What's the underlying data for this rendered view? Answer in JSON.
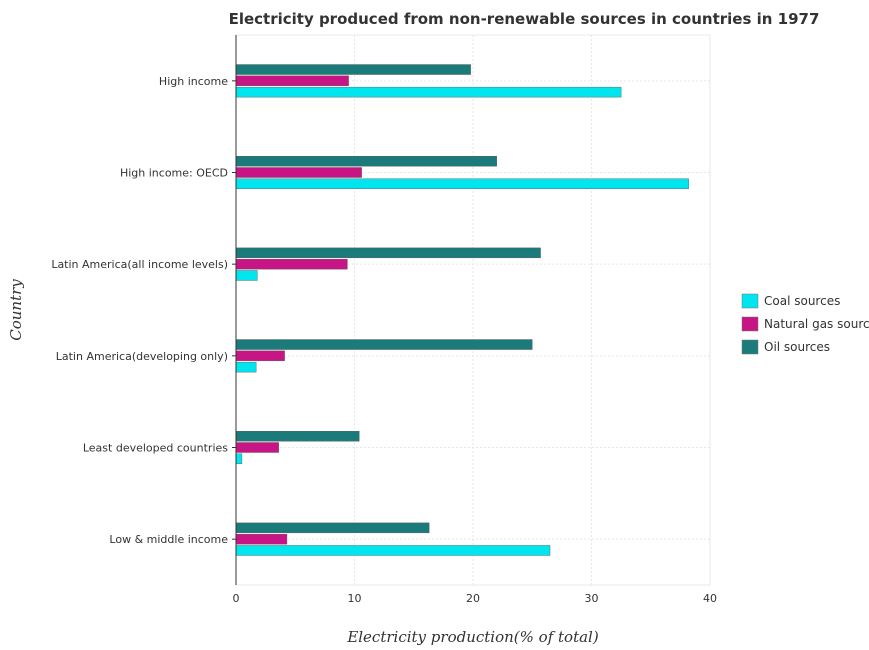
{
  "chart_data": {
    "type": "bar",
    "orientation": "horizontal",
    "title": "Electricity produced from non-renewable sources in countries in 1977",
    "xlabel": "Electricity production(% of total)",
    "ylabel": "Country",
    "xlim": [
      0,
      40
    ],
    "xticks": [
      "0",
      "10",
      "20",
      "30",
      "40"
    ],
    "grid": true,
    "legend_position": "right",
    "categories": [
      "High income",
      "High income: OECD",
      "Latin America(all income levels)",
      "Latin America(developing only)",
      "Least developed countries",
      "Low & middle income"
    ],
    "series": [
      {
        "name": "Coal sources",
        "color": "#00e5ee",
        "values": [
          32.5,
          38.2,
          1.8,
          1.7,
          0.5,
          26.5
        ]
      },
      {
        "name": "Natural gas sources",
        "color": "#c71585",
        "values": [
          9.5,
          10.6,
          9.4,
          4.1,
          3.6,
          4.3
        ]
      },
      {
        "name": "Oil sources",
        "color": "#1b7a7a",
        "values": [
          19.8,
          22.0,
          25.7,
          25.0,
          10.4,
          16.3
        ]
      }
    ]
  }
}
